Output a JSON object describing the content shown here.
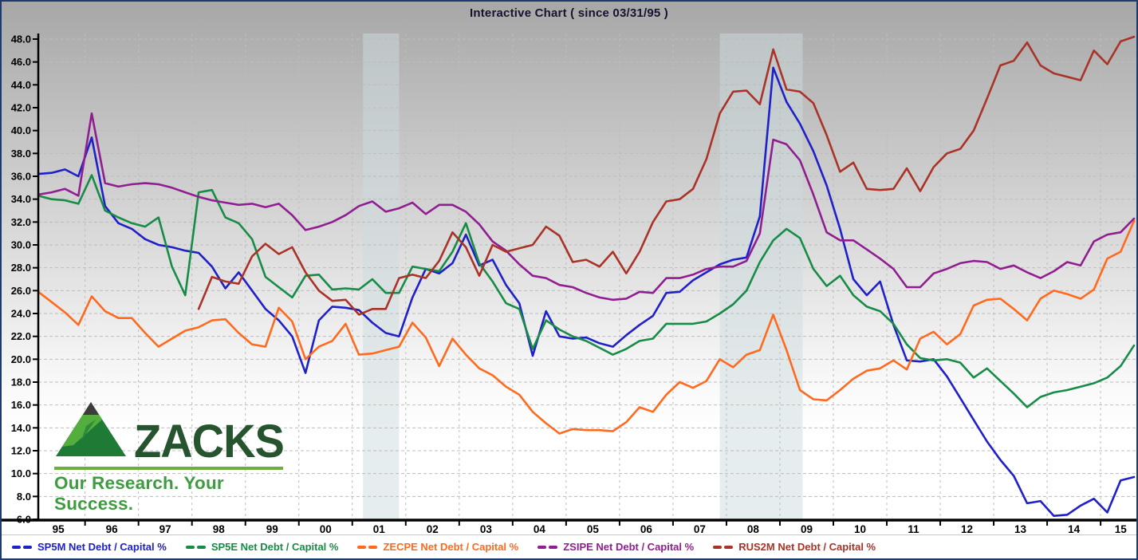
{
  "header": {
    "title": "Interactive Chart ( since 03/31/95 )"
  },
  "logo": {
    "brand": "ZACKS",
    "tagline": "Our Research. Your Success."
  },
  "colors": {
    "border": "#1d3a6e",
    "title_text": "#14142e",
    "axis": "#000000",
    "gridline": "#bdbdbd",
    "recession_band": "#cddcdd",
    "legend_background": "#ffffff"
  },
  "chart_data": {
    "type": "line",
    "title": "Interactive Chart ( since 03/31/95 )",
    "xlabel": "",
    "ylabel": "",
    "x_axis": {
      "unit": "quarters",
      "start": "1995-Q1",
      "end": "2015-Q3",
      "points_per_year": 4,
      "tick_labels": [
        "95",
        "96",
        "97",
        "98",
        "99",
        "00",
        "01",
        "02",
        "03",
        "04",
        "05",
        "06",
        "07",
        "08",
        "09",
        "10",
        "11",
        "12",
        "13",
        "14",
        "15"
      ]
    },
    "y_axis": {
      "min": 6.0,
      "max": 48.0,
      "tick_step": 2.0,
      "label_format": "one_decimal"
    },
    "grid": true,
    "legend_position": "bottom",
    "recession_bands": [
      {
        "start_quarter_index": 24.3,
        "end_quarter_index": 27.0
      },
      {
        "start_quarter_index": 51.0,
        "end_quarter_index": 57.2
      }
    ],
    "series": [
      {
        "id": "sp5m",
        "name": "SP5M Net Debt / Capital %",
        "color": "#2020c8",
        "values": [
          36.2,
          36.3,
          36.6,
          36.0,
          39.4,
          33.4,
          31.9,
          31.4,
          30.5,
          30.0,
          29.8,
          29.5,
          29.3,
          28.1,
          26.2,
          27.6,
          26.0,
          24.4,
          23.4,
          22.0,
          18.8,
          23.4,
          24.6,
          24.5,
          24.3,
          23.2,
          22.3,
          22.0,
          25.4,
          27.9,
          27.5,
          28.4,
          30.9,
          28.2,
          28.7,
          26.5,
          24.9,
          20.3,
          24.2,
          22.0,
          21.8,
          21.9,
          21.4,
          21.1,
          22.1,
          23.0,
          23.8,
          25.8,
          25.9,
          26.9,
          27.6,
          28.3,
          28.7,
          28.9,
          32.5,
          45.5,
          42.5,
          40.6,
          38.2,
          35.2,
          31.4,
          27.0,
          25.6,
          26.8,
          23.0,
          19.9,
          19.8,
          20.0,
          18.5,
          16.6,
          14.7,
          12.8,
          11.2,
          9.8,
          7.4,
          7.6,
          6.3,
          6.4,
          7.2,
          7.8,
          6.6,
          9.4,
          9.7
        ]
      },
      {
        "id": "sp5e",
        "name": "SP5E Net Debt / Capital %",
        "color": "#178c46",
        "values": [
          34.3,
          34.0,
          33.9,
          33.6,
          36.1,
          33.0,
          32.4,
          31.9,
          31.6,
          32.4,
          28.1,
          25.6,
          34.6,
          34.8,
          32.4,
          31.9,
          30.5,
          27.2,
          26.3,
          25.4,
          27.3,
          27.4,
          26.1,
          26.2,
          26.1,
          27.0,
          25.8,
          25.8,
          28.1,
          27.9,
          27.7,
          29.4,
          31.9,
          28.4,
          26.8,
          24.9,
          24.4,
          20.9,
          23.4,
          22.6,
          22.0,
          21.6,
          21.0,
          20.4,
          20.9,
          21.6,
          21.8,
          23.1,
          23.1,
          23.1,
          23.3,
          24.0,
          24.8,
          26.0,
          28.5,
          30.4,
          31.4,
          30.6,
          27.9,
          26.4,
          27.3,
          25.6,
          24.6,
          24.2,
          23.1,
          21.3,
          20.1,
          19.9,
          20.0,
          19.7,
          18.4,
          19.2,
          18.1,
          17.0,
          15.8,
          16.7,
          17.1,
          17.3,
          17.6,
          17.9,
          18.4,
          19.4,
          21.2
        ]
      },
      {
        "id": "zecpe",
        "name": "ZECPE Net Debt / Capital %",
        "color": "#ff6a1e",
        "values": [
          25.9,
          25.0,
          24.1,
          23.0,
          25.5,
          24.2,
          23.6,
          23.6,
          22.3,
          21.1,
          21.8,
          22.5,
          22.8,
          23.4,
          23.5,
          22.3,
          21.3,
          21.1,
          24.5,
          23.3,
          20.0,
          21.1,
          21.6,
          23.1,
          20.4,
          20.5,
          20.8,
          21.1,
          23.2,
          21.9,
          19.4,
          21.8,
          20.4,
          19.2,
          18.6,
          17.6,
          16.9,
          15.4,
          14.4,
          13.5,
          13.9,
          13.8,
          13.8,
          13.7,
          14.5,
          15.8,
          15.4,
          16.9,
          18.0,
          17.5,
          18.1,
          20.0,
          19.3,
          20.4,
          20.8,
          23.9,
          20.8,
          17.3,
          16.5,
          16.4,
          17.3,
          18.3,
          19.0,
          19.2,
          19.9,
          19.1,
          21.8,
          22.4,
          21.3,
          22.2,
          24.7,
          25.2,
          25.3,
          24.4,
          23.4,
          25.3,
          26.0,
          25.7,
          25.3,
          26.1,
          28.8,
          29.4,
          32.1
        ]
      },
      {
        "id": "zsipe",
        "name": "ZSIPE Net Debt / Capital %",
        "color": "#911e91",
        "values": [
          34.4,
          34.6,
          34.9,
          34.3,
          41.5,
          35.4,
          35.1,
          35.3,
          35.4,
          35.3,
          35.0,
          34.6,
          34.2,
          33.9,
          33.7,
          33.5,
          33.6,
          33.3,
          33.6,
          32.6,
          31.3,
          31.6,
          32.0,
          32.6,
          33.4,
          33.8,
          32.9,
          33.2,
          33.7,
          32.7,
          33.5,
          33.5,
          32.9,
          31.8,
          30.3,
          29.5,
          28.3,
          27.3,
          27.1,
          26.5,
          26.3,
          25.8,
          25.4,
          25.2,
          25.3,
          25.9,
          25.8,
          27.1,
          27.1,
          27.4,
          27.9,
          28.1,
          28.1,
          28.6,
          31.0,
          39.2,
          38.8,
          37.4,
          34.4,
          31.1,
          30.4,
          30.4,
          29.6,
          28.8,
          27.9,
          26.3,
          26.3,
          27.5,
          27.9,
          28.4,
          28.6,
          28.5,
          27.9,
          28.2,
          27.6,
          27.1,
          27.7,
          28.5,
          28.2,
          30.3,
          30.9,
          31.1,
          32.3
        ]
      },
      {
        "id": "rus2m",
        "name": "RUS2M Net Debt / Capital %",
        "color": "#aa3328",
        "values": [
          null,
          null,
          null,
          null,
          null,
          null,
          null,
          null,
          null,
          null,
          null,
          null,
          24.4,
          27.2,
          26.8,
          26.6,
          29.0,
          30.1,
          29.2,
          29.8,
          27.6,
          26.0,
          25.1,
          25.2,
          23.9,
          24.4,
          24.4,
          27.1,
          27.4,
          27.1,
          28.6,
          31.1,
          29.8,
          27.3,
          30.0,
          29.4,
          29.7,
          30.0,
          31.6,
          30.8,
          28.5,
          28.7,
          28.1,
          29.4,
          27.5,
          29.4,
          32.0,
          33.8,
          34.0,
          34.9,
          37.5,
          41.5,
          43.4,
          43.5,
          42.3,
          47.1,
          43.6,
          43.4,
          42.4,
          39.6,
          36.4,
          37.2,
          34.9,
          34.8,
          34.9,
          36.7,
          34.7,
          36.8,
          38.0,
          38.4,
          40.0,
          42.8,
          45.7,
          46.1,
          47.7,
          45.7,
          45.0,
          44.7,
          44.4,
          47.0,
          45.8,
          47.8,
          48.2
        ]
      }
    ]
  }
}
